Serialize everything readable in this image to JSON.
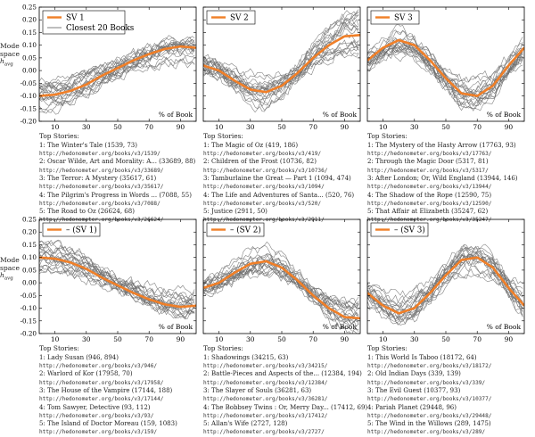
{
  "figure": {
    "ylabel_lines": [
      "Mode",
      "space",
      "h",
      "avg"
    ],
    "xlabel": "% of Book",
    "stories_heading": "Top Stories:",
    "closest_label": "Closest 20 Books"
  },
  "chart_data": [
    {
      "type": "line",
      "legend": [
        "SV 1",
        "Closest 20 Books"
      ],
      "xlim": [
        0,
        100
      ],
      "ylim": [
        -0.2,
        0.25
      ],
      "xticks": [
        10,
        30,
        50,
        70,
        90
      ],
      "yticks": [
        "0.25",
        "0.20",
        "0.15",
        "0.10",
        "0.05",
        "0.00",
        "-0.05",
        "-0.10",
        "-0.15",
        "-0.20"
      ],
      "series": [
        {
          "name": "SV 1",
          "x": [
            0,
            10,
            20,
            30,
            40,
            50,
            60,
            70,
            80,
            90,
            100
          ],
          "values": [
            -0.1,
            -0.095,
            -0.08,
            -0.055,
            -0.02,
            0.01,
            0.04,
            0.065,
            0.085,
            0.095,
            0.09
          ]
        }
      ],
      "stories": [
        {
          "text": "1: The Winter's Tale (1539, 73)",
          "url": "http://hedonometer.org/books/v3/1539/"
        },
        {
          "text": "2: Oscar Wilde, Art and Morality: A... (33689, 88)",
          "url": "http://hedonometer.org/books/v3/33689/"
        },
        {
          "text": "3: The Terror: A Mystery (35617, 61)",
          "url": "http://hedonometer.org/books/v3/35617/"
        },
        {
          "text": "4: The Pilgrim's Progress in Words ... (7088, 55)",
          "url": "http://hedonometer.org/books/v3/7088/"
        },
        {
          "text": "5: The Road to Oz (26624, 68)",
          "url": "http://hedonometer.org/books/v3/26624/"
        }
      ]
    },
    {
      "type": "line",
      "legend": [
        "SV 2"
      ],
      "xlim": [
        0,
        100
      ],
      "ylim": [
        -0.2,
        0.25
      ],
      "xticks": [
        10,
        30,
        50,
        70,
        90
      ],
      "series": [
        {
          "name": "SV 2",
          "x": [
            0,
            10,
            20,
            30,
            40,
            50,
            60,
            70,
            80,
            90,
            100
          ],
          "values": [
            0.02,
            0.0,
            -0.04,
            -0.075,
            -0.085,
            -0.06,
            -0.01,
            0.05,
            0.1,
            0.135,
            0.14
          ]
        }
      ],
      "stories": [
        {
          "text": "1: The Magic of Oz (419, 186)",
          "url": "http://hedonometer.org/books/v3/419/"
        },
        {
          "text": "2: Children of the Frost (10736, 82)",
          "url": "http://hedonometer.org/books/v3/10736/"
        },
        {
          "text": "3: Tamburlaine the Great — Part 1 (1094, 474)",
          "url": "http://hedonometer.org/books/v3/1094/"
        },
        {
          "text": "4: The Life and Adventures of Santa... (520, 76)",
          "url": "http://hedonometer.org/books/v3/520/"
        },
        {
          "text": "5: Justice (2911, 50)",
          "url": "http://hedonometer.org/books/v3/2911/"
        }
      ]
    },
    {
      "type": "line",
      "legend": [
        "SV 3"
      ],
      "xlim": [
        0,
        100
      ],
      "ylim": [
        -0.2,
        0.25
      ],
      "xticks": [
        10,
        30,
        50,
        70,
        90
      ],
      "series": [
        {
          "name": "SV 3",
          "x": [
            0,
            10,
            20,
            30,
            40,
            50,
            60,
            70,
            80,
            90,
            100
          ],
          "values": [
            0.04,
            0.09,
            0.12,
            0.1,
            0.04,
            -0.03,
            -0.09,
            -0.1,
            -0.06,
            0.02,
            0.09
          ]
        }
      ],
      "stories": [
        {
          "text": "1: The Mystery of the Hasty Arrow (17763, 93)",
          "url": "http://hedonometer.org/books/v3/17763/"
        },
        {
          "text": "2: Through the Magic Door (5317, 81)",
          "url": "http://hedonometer.org/books/v3/5317/"
        },
        {
          "text": "3: After London; Or, Wild England (13944, 146)",
          "url": "http://hedonometer.org/books/v3/13944/"
        },
        {
          "text": "4: The Shadow of the Rope (12590, 75)",
          "url": "http://hedonometer.org/books/v3/12590/"
        },
        {
          "text": "5: That Affair at Elizabeth (35247, 62)",
          "url": "http://hedonometer.org/books/v3/35247/"
        }
      ]
    },
    {
      "type": "line",
      "legend": [
        "– (SV 1)"
      ],
      "xlim": [
        0,
        100
      ],
      "ylim": [
        -0.2,
        0.25
      ],
      "xticks": [
        10,
        30,
        50,
        70,
        90
      ],
      "series": [
        {
          "name": "– (SV 1)",
          "x": [
            0,
            10,
            20,
            30,
            40,
            50,
            60,
            70,
            80,
            90,
            100
          ],
          "values": [
            0.1,
            0.095,
            0.08,
            0.055,
            0.02,
            -0.01,
            -0.04,
            -0.065,
            -0.085,
            -0.095,
            -0.09
          ]
        }
      ],
      "stories": [
        {
          "text": "1: Lady Susan (946, 894)",
          "url": "http://hedonometer.org/books/v3/946/"
        },
        {
          "text": "2: Warlord of Kor (17958, 70)",
          "url": "http://hedonometer.org/books/v3/17958/"
        },
        {
          "text": "3: The House of the Vampire (17144, 188)",
          "url": "http://hedonometer.org/books/v3/17144/"
        },
        {
          "text": "4: Tom Sawyer, Detective (93, 112)",
          "url": "http://hedonometer.org/books/v3/93/"
        },
        {
          "text": "5: The Island of Doctor Moreau (159, 1083)",
          "url": "http://hedonometer.org/books/v3/159/"
        }
      ]
    },
    {
      "type": "line",
      "legend": [
        "– (SV 2)"
      ],
      "xlim": [
        0,
        100
      ],
      "ylim": [
        -0.2,
        0.25
      ],
      "xticks": [
        10,
        30,
        50,
        70,
        90
      ],
      "series": [
        {
          "name": "– (SV 2)",
          "x": [
            0,
            10,
            20,
            30,
            40,
            50,
            60,
            70,
            80,
            90,
            100
          ],
          "values": [
            -0.02,
            0.0,
            0.04,
            0.075,
            0.085,
            0.06,
            0.01,
            -0.05,
            -0.1,
            -0.135,
            -0.14
          ]
        }
      ],
      "stories": [
        {
          "text": "1: Shadowings (34215, 63)",
          "url": "http://hedonometer.org/books/v3/34215/"
        },
        {
          "text": "2: Battle-Pieces and Aspects of the... (12384, 194)",
          "url": "http://hedonometer.org/books/v3/12384/"
        },
        {
          "text": "3: The Slayer of Souls (36281, 63)",
          "url": "http://hedonometer.org/books/v3/36281/"
        },
        {
          "text": "4: The Bobbsey Twins : Or, Merry Day... (17412, 69)",
          "url": "http://hedonometer.org/books/v3/17412/"
        },
        {
          "text": "5: Allan's Wife (2727, 128)",
          "url": "http://hedonometer.org/books/v3/2727/"
        }
      ]
    },
    {
      "type": "line",
      "legend": [
        "– (SV 3)"
      ],
      "xlim": [
        0,
        100
      ],
      "ylim": [
        -0.2,
        0.25
      ],
      "xticks": [
        10,
        30,
        50,
        70,
        90
      ],
      "series": [
        {
          "name": "– (SV 3)",
          "x": [
            0,
            10,
            20,
            30,
            40,
            50,
            60,
            70,
            80,
            90,
            100
          ],
          "values": [
            -0.04,
            -0.09,
            -0.12,
            -0.1,
            -0.04,
            0.03,
            0.09,
            0.1,
            0.06,
            -0.02,
            -0.09
          ]
        }
      ],
      "stories": [
        {
          "text": "1: This World Is Taboo (18172, 64)",
          "url": "http://hedonometer.org/books/v3/18172/"
        },
        {
          "text": "2: Old Indian Days (339, 139)",
          "url": "http://hedonometer.org/books/v3/339/"
        },
        {
          "text": "3: The Evil Guest (10377, 93)",
          "url": "http://hedonometer.org/books/v3/10377/"
        },
        {
          "text": "4: Pariah Planet (29448, 96)",
          "url": "http://hedonometer.org/books/v3/29448/"
        },
        {
          "text": "5: The Wind in the Willows (289, 1475)",
          "url": "http://hedonometer.org/books/v3/289/"
        }
      ]
    }
  ],
  "colors": {
    "main_line": "#f07f28",
    "gray_lines": "#6e6e6e",
    "axis": "#000000"
  }
}
